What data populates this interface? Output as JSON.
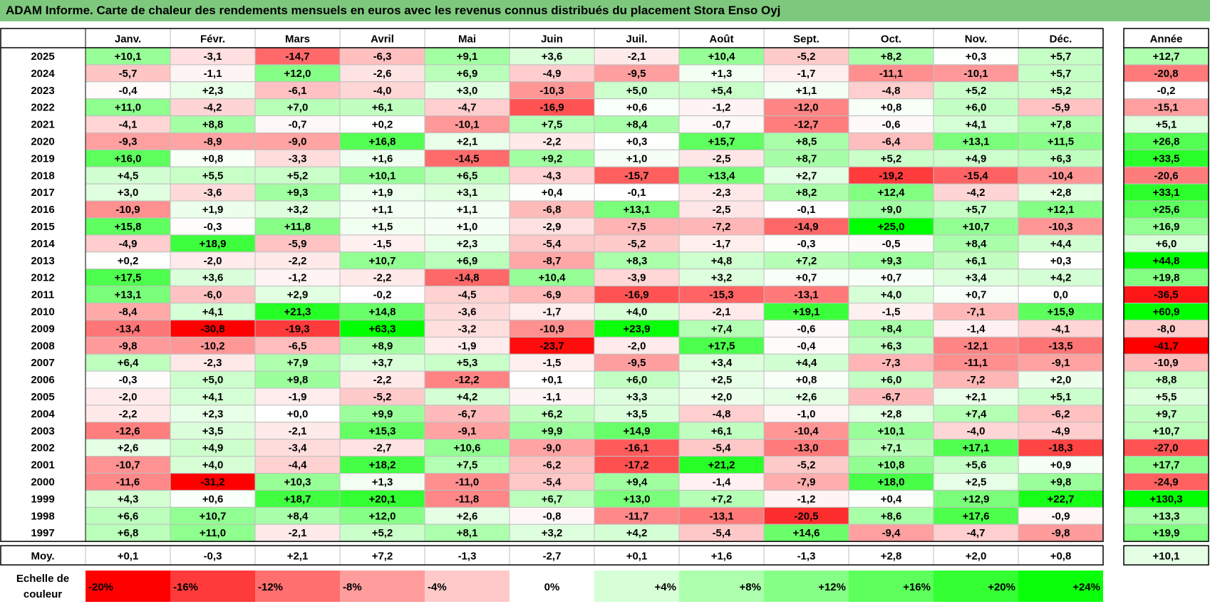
{
  "title": "ADAM Informe. Carte de chaleur des rendements mensuels en euros avec les revenus connus distribués du placement Stora Enso Oyj",
  "chart_data": {
    "type": "heatmap",
    "columns": [
      "Janv.",
      "Févr.",
      "Mars",
      "Avril",
      "Mai",
      "Juin",
      "Juil.",
      "Août",
      "Sept.",
      "Oct.",
      "Nov.",
      "Déc."
    ],
    "annual_header": "Année",
    "rows": [
      {
        "year": "2025",
        "values": [
          "+10,1",
          "-3,1",
          "-14,7",
          "-6,3",
          "+9,1",
          "+3,6",
          "-2,1",
          "+10,4",
          "-5,2",
          "+8,2",
          "+0,3",
          "+5,7"
        ],
        "annual": "+12,7"
      },
      {
        "year": "2024",
        "values": [
          "-5,7",
          "-1,1",
          "+12,0",
          "-2,6",
          "+6,9",
          "-4,9",
          "-9,5",
          "+1,3",
          "-1,7",
          "-11,1",
          "-10,1",
          "+5,7"
        ],
        "annual": "-20,8"
      },
      {
        "year": "2023",
        "values": [
          "-0,4",
          "+2,3",
          "-6,1",
          "-4,0",
          "+3,0",
          "-10,3",
          "+5,0",
          "+5,4",
          "+1,1",
          "-4,8",
          "+5,2",
          "+5,2"
        ],
        "annual": "-0,2"
      },
      {
        "year": "2022",
        "values": [
          "+11,0",
          "-4,2",
          "+7,0",
          "+6,1",
          "-4,7",
          "-16,9",
          "+0,6",
          "-1,2",
          "-12,0",
          "+0,8",
          "+6,0",
          "-5,9"
        ],
        "annual": "-15,1"
      },
      {
        "year": "2021",
        "values": [
          "-4,1",
          "+8,8",
          "-0,7",
          "+0,2",
          "-10,1",
          "+7,5",
          "+8,4",
          "-0,7",
          "-12,7",
          "-0,6",
          "+4,1",
          "+7,8"
        ],
        "annual": "+5,1"
      },
      {
        "year": "2020",
        "values": [
          "-9,3",
          "-8,9",
          "-9,0",
          "+16,8",
          "+2,1",
          "-2,2",
          "+0,3",
          "+15,7",
          "+8,5",
          "-6,4",
          "+13,1",
          "+11,5"
        ],
        "annual": "+26,8"
      },
      {
        "year": "2019",
        "values": [
          "+16,0",
          "+0,8",
          "-3,3",
          "+1,6",
          "-14,5",
          "+9,2",
          "+1,0",
          "-2,5",
          "+8,7",
          "+5,2",
          "+4,9",
          "+6,3"
        ],
        "annual": "+33,5"
      },
      {
        "year": "2018",
        "values": [
          "+4,5",
          "+5,5",
          "+5,2",
          "+10,1",
          "+6,5",
          "-4,3",
          "-15,7",
          "+13,4",
          "+2,7",
          "-19,2",
          "-15,4",
          "-10,4"
        ],
        "annual": "-20,6"
      },
      {
        "year": "2017",
        "values": [
          "+3,0",
          "-3,6",
          "+9,3",
          "+1,9",
          "+3,1",
          "+0,4",
          "-0,1",
          "-2,3",
          "+8,2",
          "+12,4",
          "-4,2",
          "+2,8"
        ],
        "annual": "+33,1"
      },
      {
        "year": "2016",
        "values": [
          "-10,9",
          "+1,9",
          "+3,2",
          "+1,1",
          "+1,1",
          "-6,8",
          "+13,1",
          "-2,5",
          "-0,1",
          "+9,0",
          "+5,7",
          "+12,1"
        ],
        "annual": "+25,6"
      },
      {
        "year": "2015",
        "values": [
          "+15,8",
          "-0,3",
          "+11,8",
          "+1,5",
          "+1,0",
          "-2,9",
          "-7,5",
          "-7,2",
          "-14,9",
          "+25,0",
          "+10,7",
          "-10,3"
        ],
        "annual": "+16,9"
      },
      {
        "year": "2014",
        "values": [
          "-4,9",
          "+18,9",
          "-5,9",
          "-1,5",
          "+2,3",
          "-5,4",
          "-5,2",
          "-1,7",
          "-0,3",
          "-0,5",
          "+8,4",
          "+4,4"
        ],
        "annual": "+6,0"
      },
      {
        "year": "2013",
        "values": [
          "+0,2",
          "-2,0",
          "-2,2",
          "+10,7",
          "+6,9",
          "-8,7",
          "+8,3",
          "+4,8",
          "+7,2",
          "+9,3",
          "+6,1",
          "+0,3"
        ],
        "annual": "+44,8"
      },
      {
        "year": "2012",
        "values": [
          "+17,5",
          "+3,6",
          "-1,2",
          "-2,2",
          "-14,8",
          "+10,4",
          "-3,9",
          "+3,2",
          "+0,7",
          "+0,7",
          "+3,4",
          "+4,2"
        ],
        "annual": "+19,8"
      },
      {
        "year": "2011",
        "values": [
          "+13,1",
          "-6,0",
          "+2,9",
          "-0,2",
          "-4,5",
          "-6,9",
          "-16,9",
          "-15,3",
          "-13,1",
          "+4,0",
          "+0,7",
          "0,0"
        ],
        "annual": "-36,5"
      },
      {
        "year": "2010",
        "values": [
          "-8,4",
          "+4,1",
          "+21,3",
          "+14,8",
          "-3,6",
          "-1,7",
          "+4,0",
          "-2,1",
          "+19,1",
          "-1,5",
          "-7,1",
          "+15,9"
        ],
        "annual": "+60,9"
      },
      {
        "year": "2009",
        "values": [
          "-13,4",
          "-30,8",
          "-19,3",
          "+63,3",
          "-3,2",
          "-10,9",
          "+23,9",
          "+7,4",
          "-0,6",
          "+8,4",
          "-1,4",
          "-4,1"
        ],
        "annual": "-8,0"
      },
      {
        "year": "2008",
        "values": [
          "-9,8",
          "-10,2",
          "-6,5",
          "+8,9",
          "-1,9",
          "-23,7",
          "-2,0",
          "+17,5",
          "-0,4",
          "+6,3",
          "-12,1",
          "-13,5"
        ],
        "annual": "-41,7"
      },
      {
        "year": "2007",
        "values": [
          "+6,4",
          "-2,3",
          "+7,9",
          "+3,7",
          "+5,3",
          "-1,5",
          "-9,5",
          "+3,4",
          "+4,4",
          "-7,3",
          "-11,1",
          "-9,1"
        ],
        "annual": "-10,9"
      },
      {
        "year": "2006",
        "values": [
          "-0,3",
          "+5,0",
          "+9,8",
          "-2,2",
          "-12,2",
          "+0,1",
          "+6,0",
          "+2,5",
          "+0,8",
          "+6,0",
          "-7,2",
          "+2,0"
        ],
        "annual": "+8,8"
      },
      {
        "year": "2005",
        "values": [
          "-2,0",
          "+4,1",
          "-1,9",
          "-5,2",
          "+4,2",
          "-1,1",
          "+3,3",
          "+2,0",
          "+2,6",
          "-6,7",
          "+2,1",
          "+5,1"
        ],
        "annual": "+5,5"
      },
      {
        "year": "2004",
        "values": [
          "-2,2",
          "+2,3",
          "+0,0",
          "+9,9",
          "-6,7",
          "+6,2",
          "+3,5",
          "-4,8",
          "-1,0",
          "+2,8",
          "+7,4",
          "-6,2"
        ],
        "annual": "+9,7"
      },
      {
        "year": "2003",
        "values": [
          "-12,6",
          "+3,5",
          "-2,1",
          "+15,3",
          "-9,1",
          "+9,9",
          "+14,9",
          "+6,1",
          "-10,4",
          "+10,1",
          "-4,0",
          "-4,9"
        ],
        "annual": "+10,7"
      },
      {
        "year": "2002",
        "values": [
          "+2,6",
          "+4,9",
          "-3,4",
          "-2,7",
          "+10,6",
          "-9,0",
          "-16,1",
          "-5,4",
          "-13,0",
          "+7,1",
          "+17,1",
          "-18,3"
        ],
        "annual": "-27,0"
      },
      {
        "year": "2001",
        "values": [
          "-10,7",
          "+4,0",
          "-4,4",
          "+18,2",
          "+7,5",
          "-6,2",
          "-17,2",
          "+21,2",
          "-5,2",
          "+10,8",
          "+5,6",
          "+0,9"
        ],
        "annual": "+17,7"
      },
      {
        "year": "2000",
        "values": [
          "-11,6",
          "-31,2",
          "+10,3",
          "+1,3",
          "-11,0",
          "-5,4",
          "+9,4",
          "-1,4",
          "-7,9",
          "+18,0",
          "+2,5",
          "+9,8"
        ],
        "annual": "-24,9"
      },
      {
        "year": "1999",
        "values": [
          "+4,3",
          "+0,6",
          "+18,7",
          "+20,1",
          "-11,8",
          "+6,7",
          "+13,0",
          "+7,2",
          "-1,2",
          "+0,4",
          "+12,9",
          "+22,7"
        ],
        "annual": "+130,3"
      },
      {
        "year": "1998",
        "values": [
          "+6,6",
          "+10,7",
          "+8,4",
          "+12,0",
          "+2,6",
          "-0,8",
          "-11,7",
          "-13,1",
          "-20,5",
          "+8,6",
          "+17,6",
          "-0,9"
        ],
        "annual": "+13,3"
      },
      {
        "year": "1997",
        "values": [
          "+6,8",
          "+11,0",
          "-2,1",
          "+5,2",
          "+8,1",
          "+3,2",
          "+4,2",
          "-5,4",
          "+14,6",
          "-9,4",
          "-4,7",
          "-9,8"
        ],
        "annual": "+19,9"
      }
    ],
    "average": {
      "label": "Moy.",
      "values": [
        "+0,1",
        "-0,3",
        "+2,1",
        "+7,2",
        "-1,3",
        "-2,7",
        "+0,1",
        "+1,6",
        "-1,3",
        "+2,8",
        "+2,0",
        "+0,8"
      ],
      "annual": "+10,1"
    },
    "scale": {
      "label_line1": "Echelle de",
      "label_line2": "couleur",
      "items": [
        {
          "label": "-20%",
          "level": -20,
          "color": "#ff0000"
        },
        {
          "label": "-16%",
          "level": -16,
          "color": "#ff3a3a"
        },
        {
          "label": "-12%",
          "level": -12,
          "color": "#ff6f6f"
        },
        {
          "label": "-8%",
          "level": -8,
          "color": "#ff9c9c"
        },
        {
          "label": "-4%",
          "level": -4,
          "color": "#ffc9c9"
        },
        {
          "label": "0%",
          "level": 0,
          "color": "#ffffff"
        },
        {
          "label": "+4%",
          "level": 4,
          "color": "#d6ffd6"
        },
        {
          "label": "+8%",
          "level": 8,
          "color": "#adffad"
        },
        {
          "label": "+12%",
          "level": 12,
          "color": "#85ff85"
        },
        {
          "label": "+16%",
          "level": 16,
          "color": "#5cff5c"
        },
        {
          "label": "+20%",
          "level": 20,
          "color": "#33ff33"
        },
        {
          "label": "+24%",
          "level": 24,
          "color": "#0aff0a"
        }
      ]
    },
    "colors": {
      "negative_max": "#ff0000",
      "positive_max": "#00ff00",
      "neutral": "#ffffff",
      "title_bar": "#7dc87d",
      "grid": "#bfbfbf",
      "border": "#000000"
    }
  }
}
